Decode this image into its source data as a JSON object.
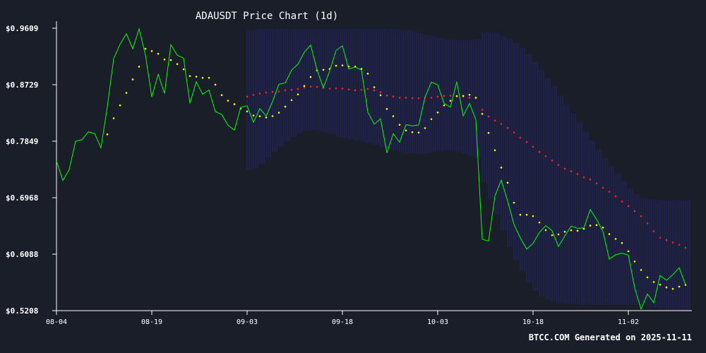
{
  "chart_data": {
    "type": "line",
    "title": "ADAUSDT Price Chart (1d)",
    "footer": "BTCC.COM Generated on 2025-11-11",
    "ylim": [
      0.5208,
      0.9609
    ],
    "y_ticks": [
      "$0.9609",
      "$0.8729",
      "$0.7849",
      "$0.6968",
      "$0.6088",
      "$0.5208"
    ],
    "x_ticks": [
      "08-04",
      "08-19",
      "09-03",
      "09-18",
      "10-03",
      "10-18",
      "11-02"
    ],
    "x_start": "2025-08-04",
    "grid": false,
    "colors": {
      "background": "#1a1e29",
      "price": "#00ff00",
      "sma_fast": "#ffff00",
      "sma_slow": "#ff2020",
      "bands": "#2a2a8c",
      "text": "#ffffff",
      "axis": "#ffffff"
    },
    "series": [
      {
        "key": "price",
        "style": "line",
        "values": [
          0.7538,
          0.7236,
          0.7406,
          0.7848,
          0.7871,
          0.7994,
          0.7968,
          0.7745,
          0.8387,
          0.9135,
          0.9359,
          0.9522,
          0.9291,
          0.96,
          0.919,
          0.8537,
          0.8891,
          0.8592,
          0.9351,
          0.919,
          0.9143,
          0.8439,
          0.8775,
          0.8579,
          0.8646,
          0.8311,
          0.8265,
          0.8097,
          0.8021,
          0.8377,
          0.8401,
          0.8143,
          0.8356,
          0.8242,
          0.8465,
          0.8737,
          0.8755,
          0.8957,
          0.905,
          0.9236,
          0.9347,
          0.896,
          0.8681,
          0.8944,
          0.9263,
          0.9335,
          0.8974,
          0.9004,
          0.8958,
          0.8302,
          0.8113,
          0.8198,
          0.7667,
          0.7966,
          0.7832,
          0.8106,
          0.8089,
          0.8102,
          0.8536,
          0.877,
          0.8726,
          0.8436,
          0.838,
          0.8777,
          0.8244,
          0.8437,
          0.8183,
          0.6323,
          0.6291,
          0.6995,
          0.7242,
          0.6917,
          0.655,
          0.6341,
          0.6166,
          0.6258,
          0.6425,
          0.6534,
          0.6453,
          0.6207,
          0.6373,
          0.6526,
          0.6491,
          0.6496,
          0.6785,
          0.663,
          0.6442,
          0.6011,
          0.6078,
          0.6104,
          0.6074,
          0.5562,
          0.5231,
          0.5468,
          0.5331,
          0.5756,
          0.5681,
          0.5768,
          0.5876,
          0.5613
        ]
      },
      {
        "key": "sma_fast",
        "style": "dots",
        "values": [
          null,
          null,
          null,
          null,
          null,
          null,
          null,
          null,
          0.7956,
          0.8206,
          0.8408,
          0.8602,
          0.8812,
          0.901,
          0.929,
          0.9253,
          0.9211,
          0.9122,
          0.9113,
          0.905,
          0.8969,
          0.8864,
          0.8854,
          0.8836,
          0.8836,
          0.873,
          0.8567,
          0.8481,
          0.8425,
          0.8357,
          0.8313,
          0.825,
          0.8238,
          0.8218,
          0.824,
          0.8293,
          0.8387,
          0.8489,
          0.8578,
          0.871,
          0.8849,
          0.8952,
          0.8961,
          0.8974,
          0.9025,
          0.903,
          0.9012,
          0.9011,
          0.8976,
          0.8901,
          0.869,
          0.8565,
          0.8351,
          0.8239,
          0.8104,
          0.8016,
          0.7989,
          0.7983,
          0.8053,
          0.8192,
          0.8296,
          0.8407,
          0.8478,
          0.8552,
          0.8555,
          0.8572,
          0.8527,
          0.8274,
          0.7977,
          0.7708,
          0.7438,
          0.7201,
          0.689,
          0.6702,
          0.6701,
          0.6681,
          0.6582,
          0.6462,
          0.6384,
          0.6396,
          0.6438,
          0.646,
          0.6453,
          0.6484,
          0.6533,
          0.6541,
          0.6503,
          0.6401,
          0.6326,
          0.6262,
          0.6133,
          0.5974,
          0.5842,
          0.5727,
          0.5655,
          0.5612,
          0.557,
          0.5548,
          0.5582,
          0.5609
        ]
      },
      {
        "key": "sma_slow",
        "style": "dots",
        "values": [
          null,
          null,
          null,
          null,
          null,
          null,
          null,
          null,
          null,
          null,
          null,
          null,
          null,
          null,
          null,
          null,
          null,
          null,
          null,
          null,
          null,
          null,
          null,
          null,
          null,
          null,
          null,
          null,
          null,
          null,
          0.8542,
          0.857,
          0.8592,
          0.8608,
          0.8617,
          0.8621,
          0.8642,
          0.865,
          0.8663,
          0.8687,
          0.87,
          0.8696,
          0.868,
          0.8668,
          0.8671,
          0.8669,
          0.8655,
          0.8641,
          0.8649,
          0.8664,
          0.8641,
          0.8611,
          0.8563,
          0.8545,
          0.8526,
          0.8527,
          0.852,
          0.8518,
          0.8526,
          0.8528,
          0.8542,
          0.8556,
          0.8558,
          0.855,
          0.8543,
          0.8527,
          0.852,
          0.8339,
          0.8236,
          0.8171,
          0.8118,
          0.8056,
          0.7986,
          0.7905,
          0.7834,
          0.7763,
          0.7682,
          0.7615,
          0.7548,
          0.7478,
          0.7419,
          0.738,
          0.7336,
          0.7286,
          0.7252,
          0.7192,
          0.7122,
          0.7062,
          0.699,
          0.6909,
          0.6837,
          0.6758,
          0.6679,
          0.6569,
          0.6446,
          0.6344,
          0.6307,
          0.627,
          0.6234,
          0.6188
        ]
      },
      {
        "key": "bands",
        "style": "bands",
        "lower": [
          null,
          null,
          null,
          null,
          null,
          null,
          null,
          null,
          null,
          null,
          null,
          null,
          null,
          null,
          null,
          null,
          null,
          null,
          null,
          null,
          null,
          null,
          null,
          null,
          null,
          null,
          null,
          null,
          null,
          null,
          0.7406,
          0.742,
          0.75,
          0.759,
          0.768,
          0.777,
          0.785,
          0.792,
          0.798,
          0.801,
          0.802,
          0.801,
          0.798,
          0.795,
          0.792,
          0.79,
          0.788,
          0.786,
          0.784,
          0.782,
          0.779,
          0.776,
          0.773,
          0.77,
          0.768,
          0.766,
          0.765,
          0.765,
          0.766,
          0.768,
          0.77,
          0.771,
          0.77,
          0.768,
          0.765,
          0.762,
          0.758,
          0.72,
          0.695,
          0.67,
          0.645,
          0.62,
          0.6,
          0.582,
          0.565,
          0.552,
          0.543,
          0.538,
          0.535,
          0.533,
          0.532,
          0.531,
          0.5305,
          0.53,
          0.53,
          0.53,
          0.53,
          0.53,
          0.53,
          0.53,
          0.53,
          0.53,
          0.53,
          0.528,
          0.526,
          0.524,
          0.522,
          0.5215,
          0.521,
          0.5208
        ],
        "upper": [
          null,
          null,
          null,
          null,
          null,
          null,
          null,
          null,
          null,
          null,
          null,
          null,
          null,
          null,
          null,
          null,
          null,
          null,
          null,
          null,
          null,
          null,
          null,
          null,
          null,
          null,
          null,
          null,
          null,
          null,
          0.958,
          0.959,
          0.96,
          0.96,
          0.96,
          0.96,
          0.96,
          0.96,
          0.96,
          0.96,
          0.96,
          0.96,
          0.96,
          0.96,
          0.96,
          0.96,
          0.96,
          0.96,
          0.96,
          0.96,
          0.96,
          0.96,
          0.96,
          0.96,
          0.959,
          0.958,
          0.956,
          0.953,
          0.95,
          0.948,
          0.946,
          0.944,
          0.943,
          0.942,
          0.942,
          0.943,
          0.944,
          0.955,
          0.955,
          0.953,
          0.949,
          0.945,
          0.938,
          0.93,
          0.92,
          0.908,
          0.896,
          0.883,
          0.87,
          0.856,
          0.842,
          0.828,
          0.814,
          0.8,
          0.786,
          0.772,
          0.758,
          0.746,
          0.734,
          0.722,
          0.711,
          0.702,
          0.696,
          0.694,
          0.693,
          0.693,
          0.693,
          0.693,
          0.693,
          0.693
        ]
      }
    ]
  }
}
